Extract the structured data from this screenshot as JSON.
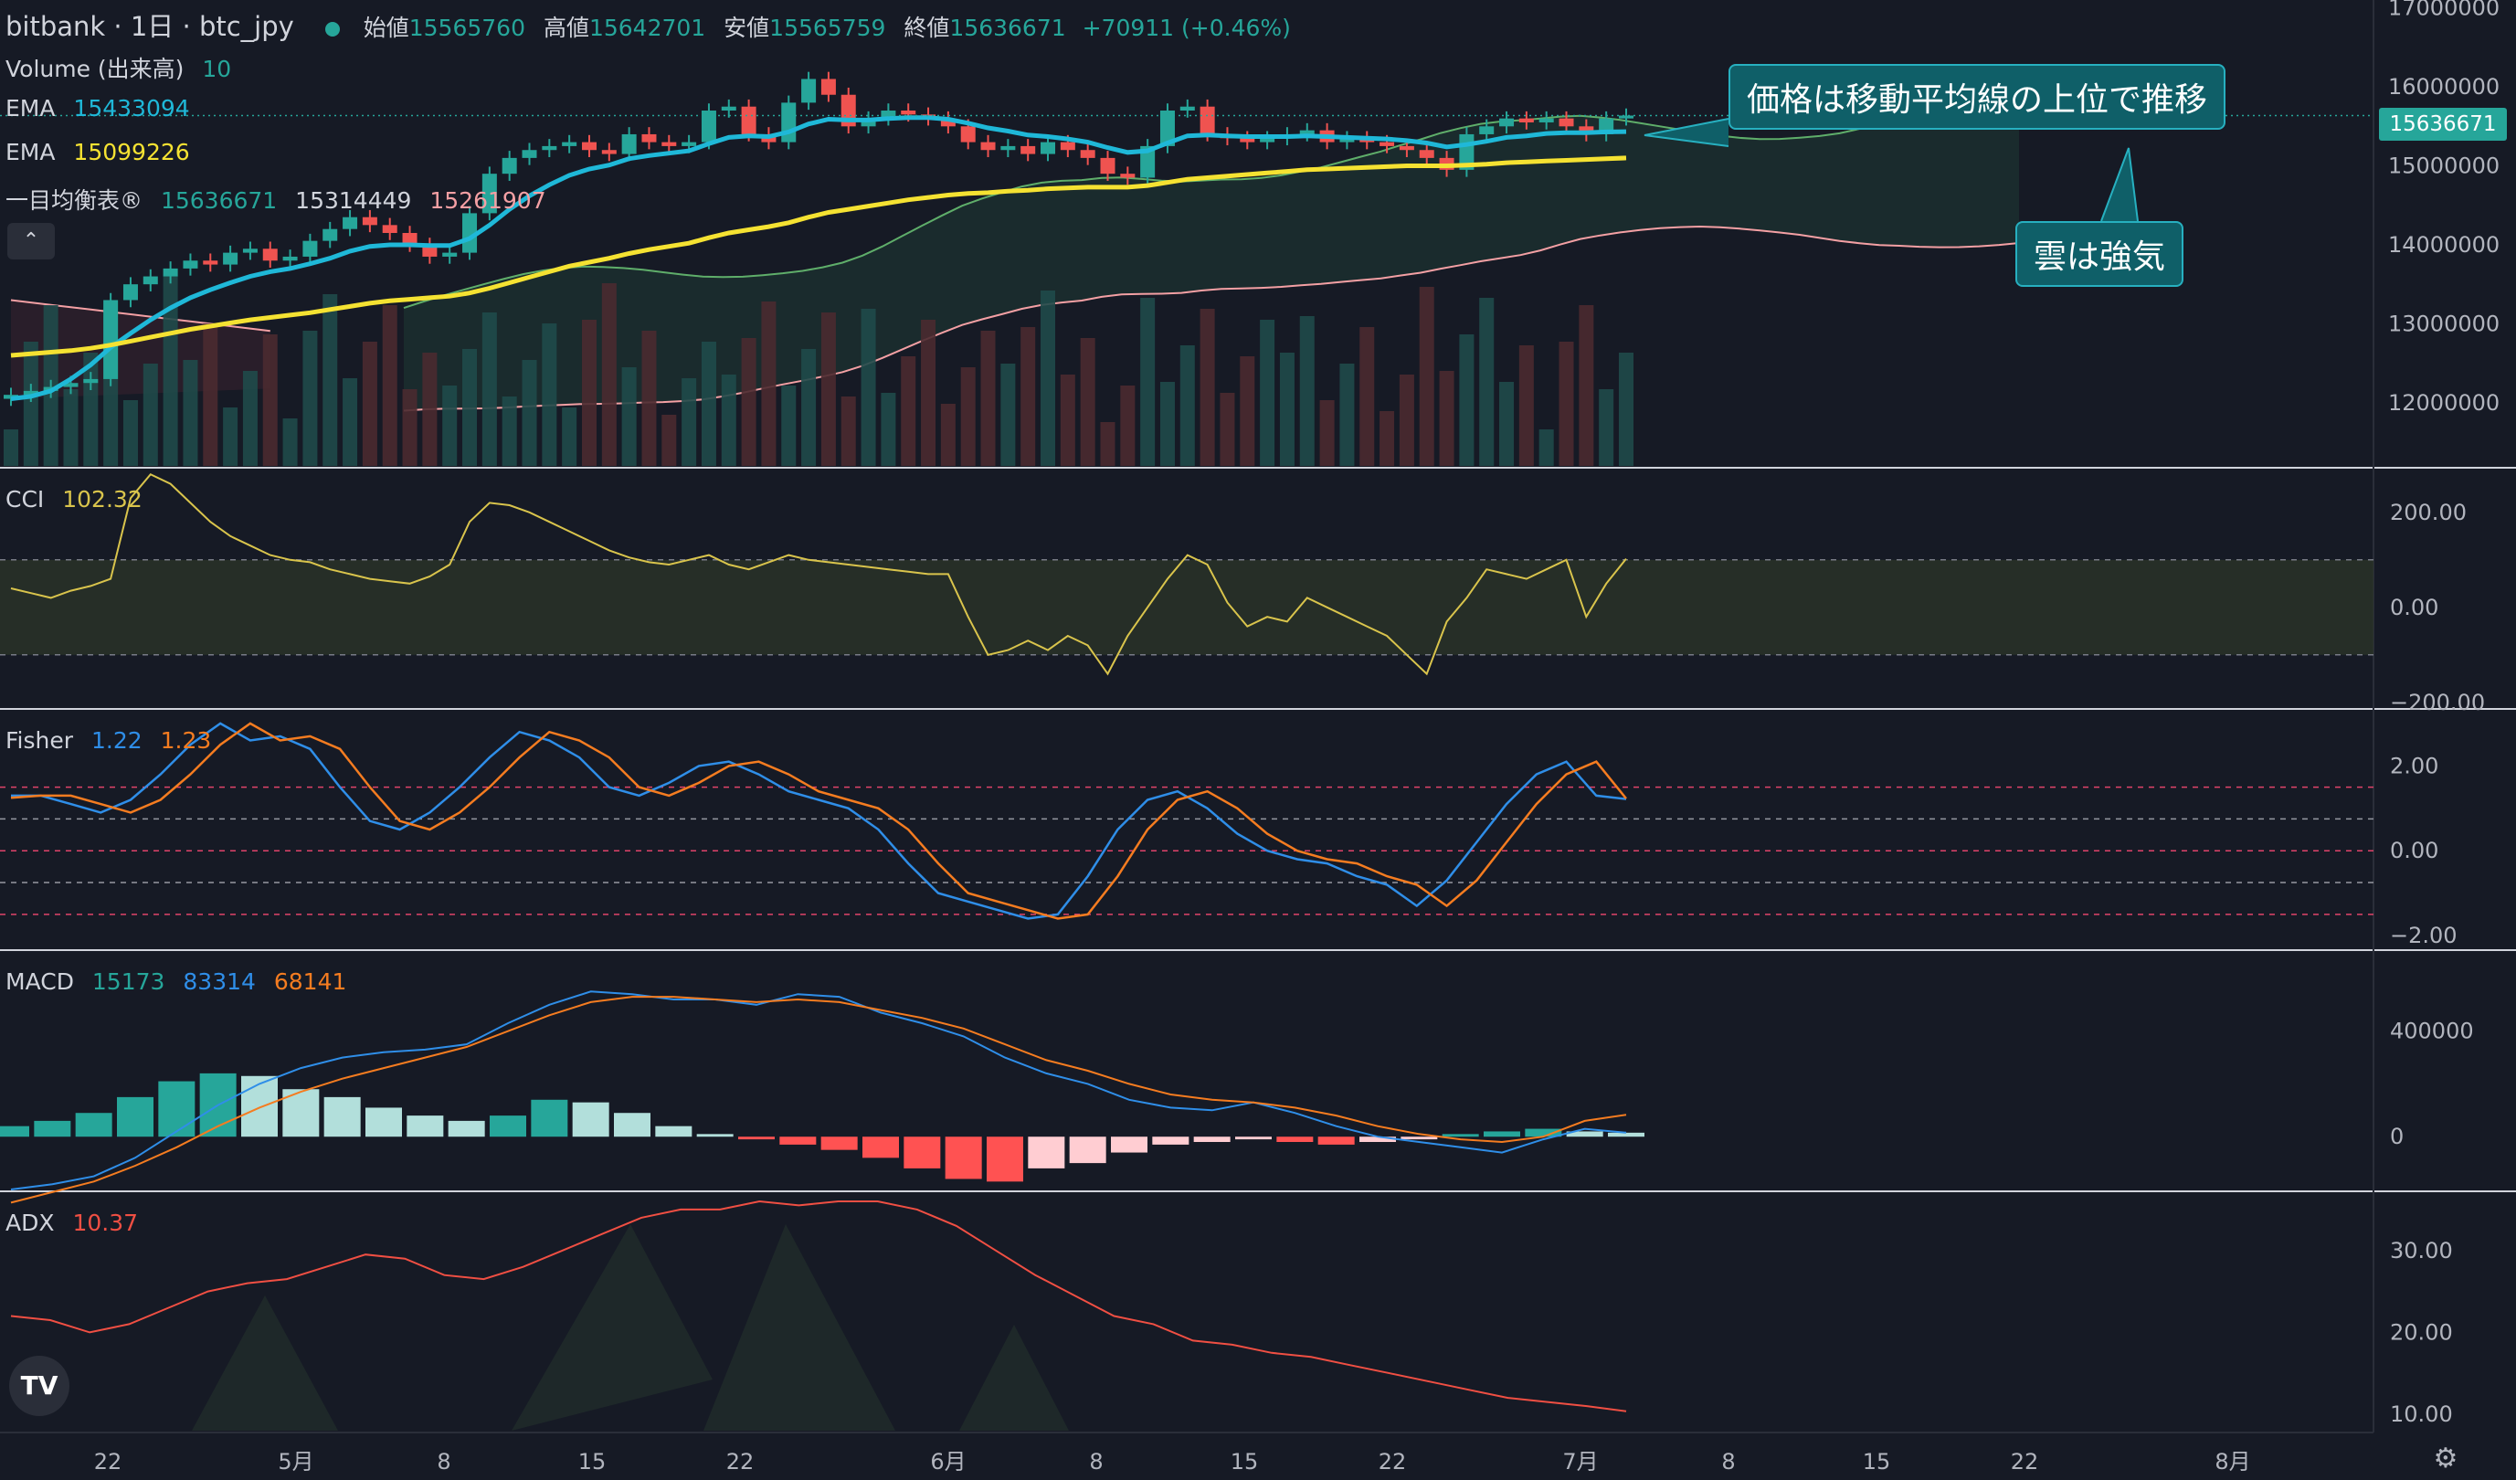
{
  "header": {
    "symbol_line": "bitbank · 1日 · btc_jpy",
    "open_label": "始値",
    "open_value": "15565760",
    "high_label": "高値",
    "high_value": "15642701",
    "low_label": "安値",
    "low_value": "15565759",
    "close_label": "終値",
    "close_value": "15636671",
    "change": "+70911 (+0.46%)"
  },
  "legend": {
    "volume_label": "Volume (出来高)",
    "volume_value": "10",
    "ema1_label": "EMA",
    "ema1_value": "15433094",
    "ema2_label": "EMA",
    "ema2_value": "15099226",
    "ichimoku_label": "一目均衡表®",
    "ichimoku_v1": "15636671",
    "ichimoku_v2": "15314449",
    "ichimoku_v3": "15261907",
    "cci_label": "CCI",
    "cci_value": "102.32",
    "fisher_label": "Fisher",
    "fisher_v1": "1.22",
    "fisher_v2": "1.23",
    "macd_label": "MACD",
    "macd_v1": "15173",
    "macd_v2": "83314",
    "macd_v3": "68141",
    "adx_label": "ADX",
    "adx_value": "10.37",
    "collapse_glyph": "⌃"
  },
  "annotations": {
    "callout_price": "価格は移動平均線の上位で推移",
    "callout_cloud": "雲は強気",
    "last_price_tag": "15636671",
    "logo_text": "TV",
    "settings_glyph": "⚙"
  },
  "colors": {
    "background": "#161a25",
    "up": "#26a69a",
    "down": "#ef5350",
    "ema_fast": "#1fb8d8",
    "ema_slow": "#f5e232",
    "fisher_fast": "#2f8ee8",
    "fisher_slow": "#f57c20",
    "adx": "#f04f43"
  },
  "chart_data": [
    {
      "type": "candlestick",
      "title": "",
      "x_tick_labels": [
        "22",
        "5月",
        "8",
        "15",
        "22",
        "6月",
        "8",
        "15",
        "22",
        "7月",
        "8",
        "15",
        "22",
        "8月"
      ],
      "y_tick_labels": [
        "17000000",
        "16000000",
        "15000000",
        "14000000",
        "13000000",
        "12000000"
      ],
      "ylim": [
        11200000,
        17100000
      ],
      "date_range": [
        "2023-04-20",
        "2023-07-03"
      ],
      "ohlc_close_series": [
        12100000,
        12150000,
        12200000,
        12250000,
        12300000,
        13300000,
        13500000,
        13600000,
        13700000,
        13800000,
        13750000,
        13900000,
        13950000,
        13800000,
        13850000,
        14050000,
        14200000,
        14350000,
        14250000,
        14150000,
        14000000,
        13850000,
        13900000,
        14400000,
        14900000,
        15100000,
        15200000,
        15250000,
        15300000,
        15200000,
        15150000,
        15400000,
        15300000,
        15250000,
        15300000,
        15700000,
        15750000,
        15400000,
        15300000,
        15800000,
        16100000,
        15900000,
        15500000,
        15600000,
        15700000,
        15650000,
        15600000,
        15500000,
        15300000,
        15200000,
        15250000,
        15150000,
        15300000,
        15200000,
        15100000,
        14900000,
        14850000,
        15250000,
        15700000,
        15750000,
        15400000,
        15350000,
        15300000,
        15350000,
        15400000,
        15450000,
        15300000,
        15350000,
        15300000,
        15250000,
        15200000,
        15100000,
        14950000,
        15400000,
        15500000,
        15600000,
        15550000,
        15600000,
        15500000,
        15400000,
        15600000,
        15636671
      ],
      "series": [
        {
          "name": "EMA",
          "values": [
            12050000,
            12080000,
            12150000,
            12300000,
            12480000,
            12700000,
            12880000,
            13050000,
            13200000,
            13330000,
            13430000,
            13520000,
            13600000,
            13660000,
            13700000,
            13760000,
            13830000,
            13920000,
            13980000,
            14000000,
            14000000,
            13990000,
            13990000,
            14080000,
            14250000,
            14450000,
            14620000,
            14760000,
            14880000,
            14960000,
            15010000,
            15090000,
            15130000,
            15160000,
            15190000,
            15280000,
            15360000,
            15380000,
            15370000,
            15430000,
            15530000,
            15590000,
            15580000,
            15580000,
            15600000,
            15610000,
            15610000,
            15590000,
            15540000,
            15480000,
            15440000,
            15390000,
            15370000,
            15340000,
            15300000,
            15230000,
            15170000,
            15190000,
            15290000,
            15380000,
            15390000,
            15380000,
            15370000,
            15370000,
            15370000,
            15380000,
            15370000,
            15360000,
            15350000,
            15340000,
            15320000,
            15290000,
            15240000,
            15270000,
            15310000,
            15360000,
            15380000,
            15410000,
            15420000,
            15420000,
            15430000,
            15433094
          ]
        },
        {
          "name": "EMA",
          "values": [
            12600000,
            12620000,
            12640000,
            12660000,
            12690000,
            12730000,
            12780000,
            12830000,
            12880000,
            12930000,
            12970000,
            13010000,
            13050000,
            13080000,
            13110000,
            13140000,
            13180000,
            13220000,
            13260000,
            13290000,
            13310000,
            13330000,
            13350000,
            13390000,
            13450000,
            13520000,
            13590000,
            13660000,
            13730000,
            13780000,
            13830000,
            13890000,
            13940000,
            13980000,
            14020000,
            14090000,
            14150000,
            14190000,
            14230000,
            14280000,
            14350000,
            14410000,
            14450000,
            14490000,
            14530000,
            14570000,
            14600000,
            14630000,
            14650000,
            14660000,
            14680000,
            14690000,
            14710000,
            14720000,
            14730000,
            14730000,
            14730000,
            14750000,
            14790000,
            14830000,
            14850000,
            14870000,
            14890000,
            14910000,
            14930000,
            14950000,
            14960000,
            14970000,
            14980000,
            14990000,
            15000000,
            15000000,
            15000000,
            15010000,
            15020000,
            15040000,
            15050000,
            15060000,
            15070000,
            15080000,
            15090000,
            15099226
          ]
        }
      ]
    },
    {
      "type": "line",
      "title": "CCI",
      "y_tick_labels": [
        "200.00",
        "0.00",
        "−200.00"
      ],
      "ylim": [
        -210,
        290
      ],
      "bands": [
        100,
        -100
      ],
      "values": [
        40,
        30,
        20,
        35,
        45,
        60,
        230,
        280,
        260,
        220,
        180,
        150,
        130,
        110,
        100,
        95,
        80,
        70,
        60,
        55,
        50,
        65,
        90,
        180,
        220,
        215,
        200,
        180,
        160,
        140,
        120,
        105,
        95,
        90,
        100,
        110,
        90,
        80,
        95,
        110,
        100,
        95,
        90,
        85,
        80,
        75,
        70,
        70,
        -20,
        -100,
        -90,
        -70,
        -90,
        -60,
        -80,
        -140,
        -60,
        0,
        60,
        110,
        90,
        10,
        -40,
        -20,
        -30,
        20,
        0,
        -20,
        -40,
        -60,
        -100,
        -140,
        -30,
        20,
        80,
        70,
        60,
        80,
        100,
        -20,
        50,
        102.32
      ]
    },
    {
      "type": "line",
      "title": "Fisher",
      "y_tick_labels": [
        "2.00",
        "0.00",
        "−2.00"
      ],
      "ylim": [
        -2.3,
        3.3
      ],
      "reference_lines": [
        1.5,
        0.75,
        0,
        -0.75,
        -1.5
      ],
      "series": [
        {
          "name": "Fisher",
          "values": [
            1.3,
            1.3,
            1.1,
            0.9,
            1.2,
            1.8,
            2.5,
            3.0,
            2.6,
            2.7,
            2.4,
            1.5,
            0.7,
            0.5,
            0.9,
            1.5,
            2.2,
            2.8,
            2.6,
            2.2,
            1.5,
            1.3,
            1.6,
            2.0,
            2.1,
            1.8,
            1.4,
            1.2,
            1.0,
            0.5,
            -0.3,
            -1.0,
            -1.2,
            -1.4,
            -1.6,
            -1.5,
            -0.6,
            0.5,
            1.2,
            1.4,
            1.0,
            0.4,
            0.0,
            -0.2,
            -0.3,
            -0.6,
            -0.8,
            -1.3,
            -0.7,
            0.2,
            1.1,
            1.8,
            2.1,
            1.3,
            1.22
          ]
        },
        {
          "name": "Trigger",
          "values": [
            1.25,
            1.3,
            1.3,
            1.1,
            0.9,
            1.2,
            1.8,
            2.5,
            3.0,
            2.6,
            2.7,
            2.4,
            1.5,
            0.7,
            0.5,
            0.9,
            1.5,
            2.2,
            2.8,
            2.6,
            2.2,
            1.5,
            1.3,
            1.6,
            2.0,
            2.1,
            1.8,
            1.4,
            1.2,
            1.0,
            0.5,
            -0.3,
            -1.0,
            -1.2,
            -1.4,
            -1.6,
            -1.5,
            -0.6,
            0.5,
            1.2,
            1.4,
            1.0,
            0.4,
            0.0,
            -0.2,
            -0.3,
            -0.6,
            -0.8,
            -1.3,
            -0.7,
            0.2,
            1.1,
            1.8,
            2.1,
            1.23
          ]
        }
      ]
    },
    {
      "type": "line",
      "title": "MACD",
      "y_tick_labels": [
        "400000",
        "0"
      ],
      "ylim": [
        -200000,
        700000
      ],
      "series": [
        {
          "name": "MACD",
          "values": [
            -200000,
            -180000,
            -150000,
            -80000,
            20000,
            120000,
            200000,
            260000,
            300000,
            320000,
            330000,
            350000,
            430000,
            500000,
            550000,
            540000,
            520000,
            520000,
            500000,
            540000,
            530000,
            470000,
            430000,
            380000,
            300000,
            240000,
            200000,
            140000,
            110000,
            100000,
            130000,
            90000,
            40000,
            0,
            -20000,
            -40000,
            -60000,
            -10000,
            30000,
            15173
          ]
        },
        {
          "name": "Signal",
          "values": [
            -250000,
            -210000,
            -170000,
            -110000,
            -40000,
            40000,
            110000,
            170000,
            220000,
            260000,
            300000,
            340000,
            400000,
            460000,
            510000,
            530000,
            530000,
            520000,
            510000,
            520000,
            510000,
            480000,
            450000,
            410000,
            350000,
            290000,
            250000,
            200000,
            160000,
            140000,
            130000,
            110000,
            80000,
            40000,
            10000,
            -10000,
            -20000,
            0,
            60000,
            83314
          ]
        },
        {
          "name": "Histogram",
          "values": [
            40000,
            60000,
            90000,
            150000,
            210000,
            240000,
            230000,
            180000,
            150000,
            110000,
            80000,
            60000,
            80000,
            140000,
            130000,
            90000,
            40000,
            10000,
            -10000,
            -30000,
            -50000,
            -80000,
            -120000,
            -160000,
            -170000,
            -120000,
            -100000,
            -60000,
            -30000,
            -20000,
            -10000,
            -20000,
            -30000,
            -20000,
            -10000,
            10000,
            20000,
            30000,
            20000,
            15173
          ]
        }
      ]
    },
    {
      "type": "line",
      "title": "ADX",
      "y_tick_labels": [
        "30.00",
        "20.00",
        "10.00"
      ],
      "ylim": [
        8,
        37
      ],
      "values": [
        22,
        21.5,
        20,
        21,
        23,
        25,
        26,
        26.5,
        28,
        29.5,
        29,
        27,
        26.5,
        28,
        30,
        32,
        34,
        35,
        35,
        36,
        35.5,
        36,
        36,
        35,
        33,
        30,
        27,
        24.5,
        22,
        21,
        19,
        18.5,
        17.5,
        17,
        16,
        15,
        14,
        13,
        12,
        11.5,
        11,
        10.37
      ]
    }
  ]
}
